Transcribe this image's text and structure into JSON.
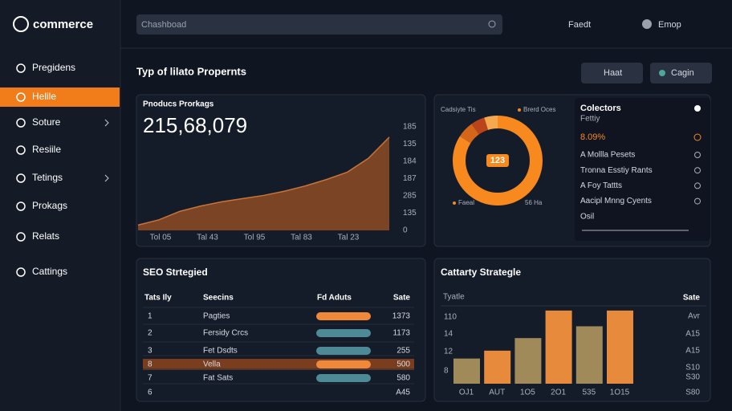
{
  "logo": "commerce",
  "nav": [
    "Pregidens",
    "Helile",
    "Soture",
    "Resiile",
    "Tetings",
    "Prokags",
    "Relats",
    "Cattings"
  ],
  "topbar": {
    "search": "Chashboad",
    "user1": "Faedt",
    "user2": "Emop"
  },
  "page_title": "Typ of lilato Propernts",
  "buttons": [
    "Haat",
    "Cagin"
  ],
  "area_card": {
    "title": "Pnoducs Prorkags",
    "total": "215,68,079",
    "values": [
      5,
      10,
      18,
      23,
      27,
      30,
      33,
      37,
      42,
      48,
      55,
      68,
      88
    ],
    "ylim": [
      0,
      100
    ],
    "right_labels": [
      "185",
      "135",
      "184",
      "187",
      "285",
      "135",
      "0"
    ],
    "x_labels": [
      "Tol 05",
      "Tal 43",
      "Tol 95",
      "Tal 83",
      "Tal 23"
    ]
  },
  "donut": {
    "legend": [
      "Cadsiyte Tis",
      "Brerd Oces"
    ],
    "center": "123",
    "footer": [
      "Faeal",
      "56 Ha"
    ],
    "values": [
      84,
      6,
      5,
      5
    ],
    "colors": [
      "#f7891f",
      "#d4661a",
      "#b9441a",
      "#f4a94e"
    ]
  },
  "collectors": {
    "title": "Colectors",
    "subtitle": "Fettiy",
    "highlight": "8.09%",
    "items": [
      "A Mollla Pesets",
      "Tronna Esstiy Rants",
      "A Foy Tattts",
      "Aacipl Mnng Cyents",
      "Osil"
    ]
  },
  "seo_table": {
    "title": "SEO Strtegied",
    "headers": [
      "Tats Ily",
      "Seecins",
      "Fd Aduts",
      "Sate"
    ],
    "rows": [
      {
        "id": "1",
        "name": "Pagties",
        "bar": 100,
        "bar_color": "#f0883a",
        "sate": "1373"
      },
      {
        "id": "2",
        "name": "Fersidy Crcs",
        "bar": 100,
        "bar_color": "#4e8a96",
        "sate": "1173"
      },
      {
        "id": "3",
        "name": "Fet Dsdts",
        "bar": 100,
        "bar_color": "#4e8a96",
        "sate": "255"
      },
      {
        "id": "8",
        "name": "Vella",
        "bar": 100,
        "bar_color": "#f0883a",
        "sate": "500"
      },
      {
        "id": "7",
        "name": "Fat Sats",
        "bar": 100,
        "bar_color": "#4e8a96",
        "sate": "580"
      },
      {
        "id": "6",
        "name": null,
        "bar": null,
        "bar_color": null,
        "sate": "A45"
      }
    ]
  },
  "bar_card": {
    "title": "Cattarty Strategle",
    "dropdown": "Tyatle",
    "right_header": "Sate",
    "categories": [
      "OJ1",
      "AUT",
      "1O5",
      "2O1",
      "535",
      "1O15"
    ],
    "values": [
      32,
      42,
      58,
      93,
      73,
      93
    ],
    "colors": [
      "#a08a5a",
      "#e88a3c",
      "#a08a5a",
      "#e88a3c",
      "#a08a5a",
      "#e88a3c"
    ],
    "ylim": [
      0,
      100
    ],
    "left_labels": [
      "110",
      "14",
      "12",
      "8"
    ],
    "right_labels": [
      "Avr",
      "A15",
      "A15",
      "S10",
      "S30",
      "S80"
    ]
  }
}
